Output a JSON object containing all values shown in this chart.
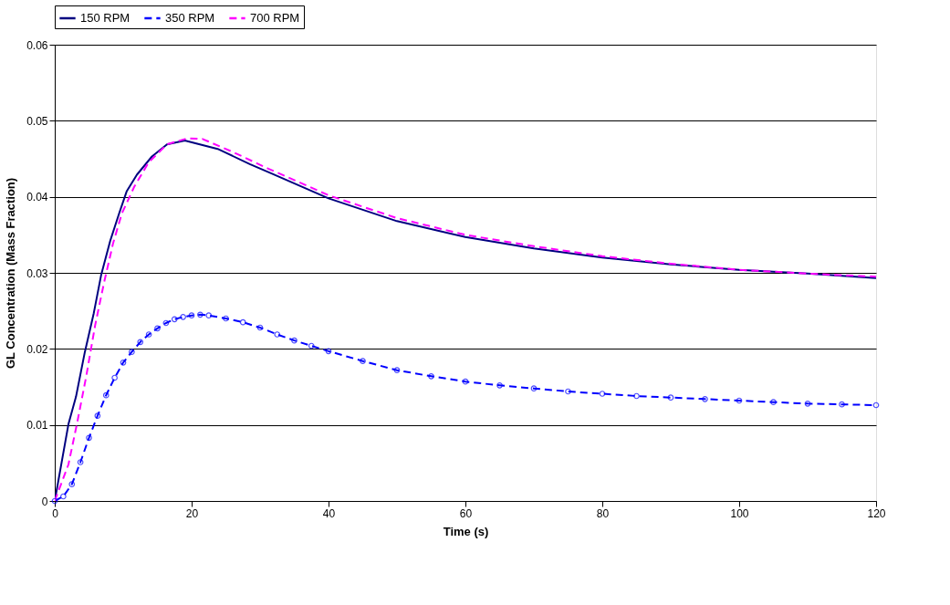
{
  "chart_data": {
    "type": "line",
    "xlabel": "Time (s)",
    "ylabel": "GL Concentration (Mass Fraction)",
    "xlim": [
      0,
      120
    ],
    "xticks": [
      0,
      20,
      40,
      60,
      80,
      100,
      120
    ],
    "ylim": [
      0,
      0.06
    ],
    "yticks": [
      0,
      0.01,
      0.02,
      0.03,
      0.04,
      0.05,
      0.06
    ],
    "grid": "y",
    "legend": "top",
    "series": [
      {
        "name": "150 RPM",
        "color": "#000080",
        "line_style": "solid",
        "marker": "none",
        "x": [
          0,
          2.0,
          3.1,
          4.4,
          5.7,
          6.8,
          8.1,
          9.4,
          10.5,
          12,
          14.2,
          16.4,
          19,
          23.8,
          28.5,
          31.6,
          40,
          50,
          60,
          70,
          80,
          90,
          100,
          110,
          120
        ],
        "values": [
          0,
          0.0101,
          0.0137,
          0.0196,
          0.0247,
          0.0298,
          0.0342,
          0.0378,
          0.0407,
          0.0429,
          0.0453,
          0.0469,
          0.0474,
          0.0463,
          0.0443,
          0.0431,
          0.0398,
          0.0368,
          0.0347,
          0.0332,
          0.032,
          0.0311,
          0.0304,
          0.0299,
          0.0293
        ]
      },
      {
        "name": "350 RPM",
        "color": "#0000ff",
        "line_style": "dashed",
        "marker": "circle",
        "x": [
          0,
          1.25,
          2.5,
          3.75,
          5,
          6.25,
          7.5,
          8.75,
          10,
          11.25,
          12.5,
          13.75,
          15,
          16.25,
          17.5,
          18.75,
          20,
          21.25,
          22.5,
          25,
          27.5,
          30,
          32.5,
          35,
          37.5,
          40,
          45,
          50,
          55,
          60,
          65,
          70,
          75,
          80,
          85,
          90,
          95,
          100,
          105,
          110,
          115,
          120
        ],
        "values": [
          0,
          0.0006,
          0.0022,
          0.0051,
          0.0083,
          0.0112,
          0.0139,
          0.0162,
          0.0182,
          0.0196,
          0.0209,
          0.0219,
          0.0227,
          0.0234,
          0.0239,
          0.0242,
          0.0244,
          0.0245,
          0.0244,
          0.024,
          0.0235,
          0.0228,
          0.0219,
          0.0211,
          0.0204,
          0.0197,
          0.0184,
          0.0172,
          0.0164,
          0.0157,
          0.0152,
          0.0148,
          0.0144,
          0.0141,
          0.0138,
          0.0136,
          0.0134,
          0.0132,
          0.013,
          0.0128,
          0.0127,
          0.0126
        ]
      },
      {
        "name": "700 RPM",
        "color": "#ff00ff",
        "line_style": "dashed",
        "marker": "none",
        "x": [
          0,
          2.0,
          3.3,
          4.6,
          5.9,
          7.2,
          8.5,
          9.8,
          11.6,
          13.7,
          16.4,
          19.4,
          21.6,
          26,
          31.2,
          40,
          50,
          60,
          70,
          80,
          90,
          100,
          110,
          120
        ],
        "values": [
          0,
          0.0048,
          0.0104,
          0.0164,
          0.0231,
          0.0287,
          0.0338,
          0.0378,
          0.0413,
          0.0445,
          0.0469,
          0.0477,
          0.0476,
          0.0459,
          0.0437,
          0.0402,
          0.0372,
          0.035,
          0.0335,
          0.0322,
          0.0312,
          0.0304,
          0.0299,
          0.0295
        ]
      }
    ]
  }
}
